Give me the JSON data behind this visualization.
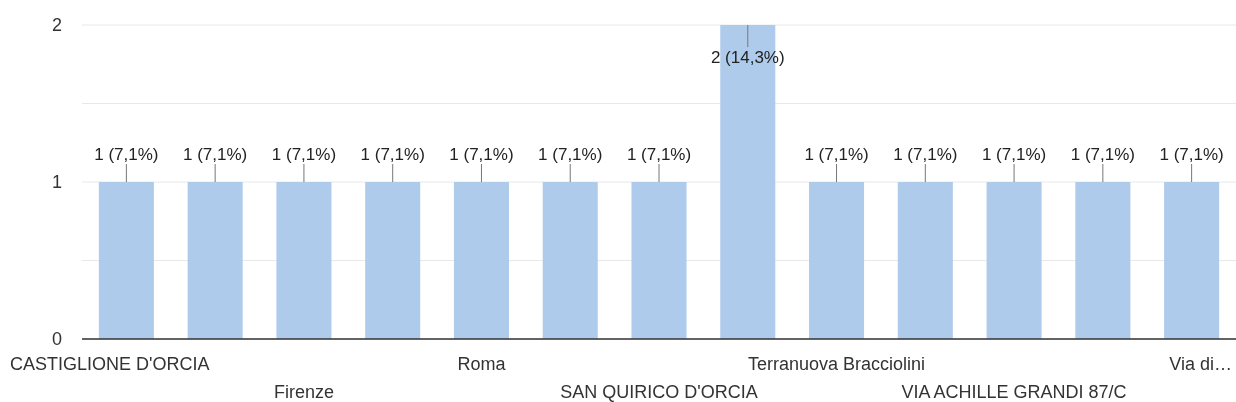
{
  "chart_data": {
    "type": "bar",
    "categories": [
      "CASTIGLIONE D'ORCIA",
      null,
      "Firenze",
      null,
      "Roma",
      null,
      "SAN QUIRICO D'ORCIA",
      null,
      "Terranuova Bracciolini",
      null,
      "VIA ACHILLE GRANDI 87/C",
      null,
      "Via di…"
    ],
    "values": [
      1,
      1,
      1,
      1,
      1,
      1,
      1,
      2,
      1,
      1,
      1,
      1,
      1
    ],
    "value_labels": [
      "1 (7,1%)",
      "1 (7,1%)",
      "1 (7,1%)",
      "1 (7,1%)",
      "1 (7,1%)",
      "1 (7,1%)",
      "1 (7,1%)",
      "2 (14,3%)",
      "1 (7,1%)",
      "1 (7,1%)",
      "1 (7,1%)",
      "1 (7,1%)",
      "1 (7,1%)"
    ],
    "color": "#aecbeb",
    "ylim": [
      0,
      2
    ],
    "yticks": [
      0,
      {
        "value": 0.5,
        "label": null
      },
      1,
      {
        "value": 1.5,
        "label": null
      },
      2
    ],
    "grid": "y"
  }
}
